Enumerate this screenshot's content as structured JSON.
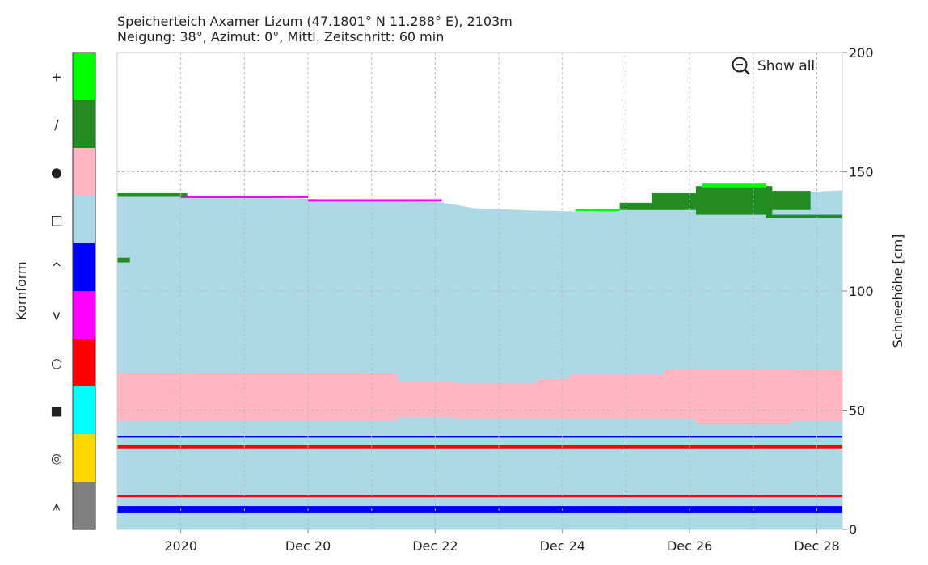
{
  "chart_data": {
    "type": "snow-profile",
    "title": "Speicherteich Axamer Lizum (47.1801° N 11.288° E), 2103m",
    "subtitle": "Neigung: 38°, Azimut: 0°, Mittl. Zeitschritt: 60 min",
    "button": "Show all",
    "y_label": "Schneehöhe [cm]",
    "legend_title": "Kornform",
    "grain_forms": [
      {
        "symbol": "+",
        "color": "#00ff00"
      },
      {
        "symbol": "/",
        "color": "#228b22"
      },
      {
        "symbol": "●",
        "color": "#ffb6c1"
      },
      {
        "symbol": "□",
        "color": "#add8e6"
      },
      {
        "symbol": "^",
        "color": "#0000ff"
      },
      {
        "symbol": "v",
        "color": "#ff00ff"
      },
      {
        "symbol": "○",
        "color": "#ff0000"
      },
      {
        "symbol": "■",
        "color": "#00ffff"
      },
      {
        "symbol": "◎",
        "color": "#ffd700"
      },
      {
        "symbol": "⩚",
        "color": "#808080"
      }
    ],
    "xlim": [
      17,
      28.4
    ],
    "xticks": [
      {
        "value": 18,
        "label": "2020"
      },
      {
        "value": 20,
        "label": "Dec 20"
      },
      {
        "value": 22,
        "label": "Dec 22"
      },
      {
        "value": 24,
        "label": "Dec 24"
      },
      {
        "value": 26,
        "label": "Dec 26"
      },
      {
        "value": 28,
        "label": "Dec 28"
      }
    ],
    "xgrid": [
      18,
      19,
      20,
      21,
      22,
      23,
      24,
      25,
      26,
      27,
      28
    ],
    "ylim": [
      0,
      200
    ],
    "yticks": [
      0,
      50,
      100,
      150,
      200
    ],
    "grid": true,
    "snow_height": {
      "form": 3,
      "x": [
        17,
        22.1,
        22.6,
        23.5,
        24.5,
        25.5,
        26.5,
        27.5,
        28.4
      ],
      "values": [
        140.7,
        137.2,
        134.8,
        133.8,
        133.2,
        136.5,
        139,
        141,
        142.3
      ]
    },
    "segments": [
      {
        "form": 2,
        "x": [
          17,
          21.4
        ],
        "y": [
          45.5,
          65.5
        ]
      },
      {
        "form": 2,
        "x": [
          21.4,
          22.3
        ],
        "y": [
          47,
          62
        ]
      },
      {
        "form": 2,
        "x": [
          22.3,
          23.6
        ],
        "y": [
          46.5,
          61.3
        ]
      },
      {
        "form": 2,
        "x": [
          23.6,
          24.1
        ],
        "y": [
          46.5,
          63
        ]
      },
      {
        "form": 2,
        "x": [
          24.1,
          25.6
        ],
        "y": [
          46.5,
          65
        ]
      },
      {
        "form": 2,
        "x": [
          25.6,
          26.1
        ],
        "y": [
          46.5,
          67.5
        ]
      },
      {
        "form": 2,
        "x": [
          26.1,
          27.6
        ],
        "y": [
          44,
          67.5
        ]
      },
      {
        "form": 2,
        "x": [
          27.6,
          28.4
        ],
        "y": [
          45.5,
          67
        ]
      },
      {
        "form": 4,
        "x": [
          17,
          28.4
        ],
        "y": [
          6.8,
          9.8
        ]
      },
      {
        "form": 6,
        "x": [
          17,
          28.4
        ],
        "y": [
          13.5,
          14.5
        ]
      },
      {
        "form": 6,
        "x": [
          17,
          28.4
        ],
        "y": [
          34,
          35.5
        ]
      },
      {
        "form": 4,
        "x": [
          17,
          28.4
        ],
        "y": [
          38.5,
          39.2
        ]
      },
      {
        "form": 5,
        "x": [
          18,
          20
        ],
        "y": [
          139,
          140
        ]
      },
      {
        "form": 5,
        "x": [
          20,
          22.1
        ],
        "y": [
          137.5,
          138.5
        ]
      },
      {
        "form": 1,
        "x": [
          17,
          18.1
        ],
        "y": [
          139.5,
          141
        ]
      },
      {
        "form": 1,
        "x": [
          17,
          17.2
        ],
        "y": [
          112,
          114
        ]
      },
      {
        "form": 0,
        "x": [
          24.2,
          24.9
        ],
        "y": [
          133.5,
          134.5
        ]
      },
      {
        "form": 1,
        "x": [
          24.9,
          25.4
        ],
        "y": [
          134,
          137
        ]
      },
      {
        "form": 1,
        "x": [
          25.4,
          26.1
        ],
        "y": [
          134,
          141
        ]
      },
      {
        "form": 1,
        "x": [
          26.1,
          27.3
        ],
        "y": [
          132,
          144
        ]
      },
      {
        "form": 1,
        "x": [
          27.3,
          27.9
        ],
        "y": [
          134,
          142
        ]
      },
      {
        "form": 1,
        "x": [
          27.2,
          28.4
        ],
        "y": [
          130.5,
          132
        ]
      },
      {
        "form": 0,
        "x": [
          26.2,
          27.2
        ],
        "y": [
          143.5,
          145
        ]
      }
    ]
  }
}
